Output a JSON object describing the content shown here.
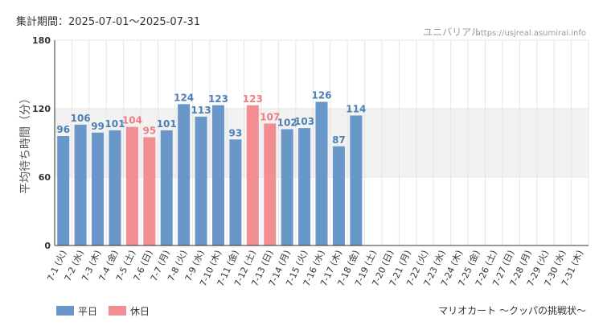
{
  "header": {
    "period_label": "集計期間：2025-07-01～2025-07-31",
    "brand": "ユニバリアル",
    "url": "https://usjreal.asumirai.info"
  },
  "footer": {
    "attraction": "マリオカート ～クッパの挑戦状～"
  },
  "legend": [
    {
      "name": "平日",
      "color": "#6a97c9"
    },
    {
      "name": "休日",
      "color": "#f28e93"
    }
  ],
  "colors": {
    "weekday": "#6a97c9",
    "holiday": "#f28e93",
    "weekday_label": "#4e7fb3",
    "holiday_label": "#f27c83",
    "band": "#f2f2f2",
    "grid": "#e6e6e6"
  },
  "chart_data": {
    "type": "bar",
    "ylabel": "平均待ち時間（分）",
    "ylim": [
      0,
      180
    ],
    "yticks": [
      0,
      60,
      120,
      180
    ],
    "shaded_band": [
      60,
      120
    ],
    "grid": true,
    "legend_position": "bottom-left",
    "categories": [
      "7-1 (火)",
      "7-2 (水)",
      "7-3 (木)",
      "7-4 (金)",
      "7-5 (土)",
      "7-6 (日)",
      "7-7 (月)",
      "7-8 (火)",
      "7-9 (水)",
      "7-10 (木)",
      "7-11 (金)",
      "7-12 (土)",
      "7-13 (日)",
      "7-14 (月)",
      "7-15 (火)",
      "7-16 (水)",
      "7-17 (木)",
      "7-18 (金)",
      "7-19 (土)",
      "7-20 (日)",
      "7-21 (月)",
      "7-22 (火)",
      "7-23 (水)",
      "7-24 (木)",
      "7-25 (金)",
      "7-26 (土)",
      "7-27 (日)",
      "7-28 (月)",
      "7-29 (火)",
      "7-30 (水)",
      "7-31 (木)"
    ],
    "day_types": [
      "weekday",
      "weekday",
      "weekday",
      "weekday",
      "holiday",
      "holiday",
      "weekday",
      "weekday",
      "weekday",
      "weekday",
      "weekday",
      "holiday",
      "holiday",
      "weekday",
      "weekday",
      "weekday",
      "weekday",
      "weekday",
      "holiday",
      "holiday",
      "holiday",
      "weekday",
      "weekday",
      "weekday",
      "weekday",
      "holiday",
      "holiday",
      "weekday",
      "weekday",
      "weekday",
      "weekday"
    ],
    "values": [
      96,
      106,
      99,
      101,
      104,
      95,
      101,
      124,
      113,
      123,
      93,
      123,
      107,
      102,
      103,
      126,
      87,
      114,
      null,
      null,
      null,
      null,
      null,
      null,
      null,
      null,
      null,
      null,
      null,
      null,
      null
    ]
  }
}
